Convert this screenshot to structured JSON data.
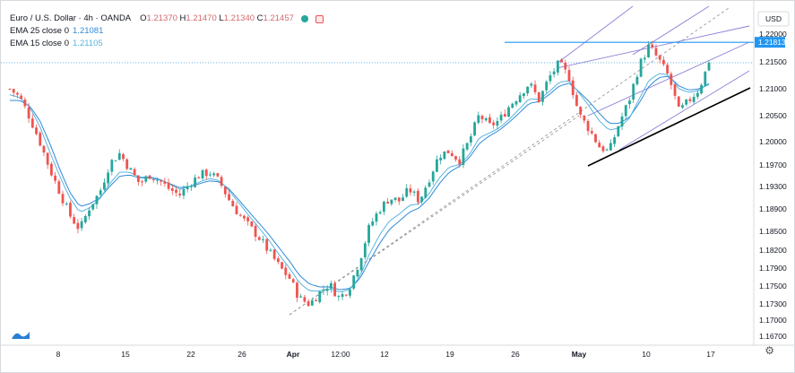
{
  "legend": {
    "symbol": "Euro / U.S. Dollar · 4h · OANDA",
    "ohlc": {
      "o": "1.21370",
      "h": "1.21470",
      "l": "1.21340",
      "c": "1.21457"
    },
    "ema25_label": "EMA 25 close 0",
    "ema25_value": "1.21081",
    "ema15_label": "EMA 15 close 0",
    "ema15_value": "1.21105"
  },
  "currency": "USD",
  "colors": {
    "up": "#26a69a",
    "down": "#ef5350",
    "ema25": "#2e8ad8",
    "ema15": "#58b4e0",
    "channel": "#8a80d8",
    "resistance": "#2196f3",
    "price_tag": "#2196f3",
    "support": "#000000"
  },
  "chart_data": {
    "type": "candlestick",
    "timeframe": "4h",
    "y_tick_labels": [
      "1.22000",
      "1.21500",
      "1.21000",
      "1.20500",
      "1.20000",
      "1.19700",
      "1.19300",
      "1.18900",
      "1.18500",
      "1.18200",
      "1.17900",
      "1.17500",
      "1.17300",
      "1.17000",
      "1.16700"
    ],
    "x_tick_labels": [
      "8",
      "15",
      "22",
      "26",
      "Apr",
      "12:00",
      "12",
      "19",
      "26",
      "May",
      "10",
      "17"
    ],
    "resistance_level": "1.21813",
    "last_price": 1.21457,
    "close_path": [
      1.21,
      1.2085,
      1.205,
      1.2008,
      1.196,
      1.192,
      1.188,
      1.1855,
      1.1895,
      1.192,
      1.197,
      1.1988,
      1.196,
      1.1935,
      1.195,
      1.194,
      1.1925,
      1.1915,
      1.1935,
      1.195,
      1.1955,
      1.1938,
      1.1905,
      1.188,
      1.186,
      1.184,
      1.1815,
      1.179,
      1.177,
      1.1735,
      1.1725,
      1.1745,
      1.176,
      1.1735,
      1.1755,
      1.18,
      1.186,
      1.189,
      1.191,
      1.1905,
      1.1925,
      1.1905,
      1.1945,
      1.1985,
      1.1992,
      1.1975,
      1.201,
      1.2055,
      1.2035,
      1.2045,
      1.207,
      1.209,
      1.211,
      1.208,
      1.212,
      1.2145,
      1.212,
      1.2055,
      1.203,
      1.2,
      1.199,
      1.204,
      1.208,
      1.214,
      1.2175,
      1.215,
      1.212,
      1.206,
      1.208,
      1.21,
      1.2146
    ],
    "ema25_path": [
      1.208,
      1.208,
      1.207,
      1.2045,
      1.2005,
      1.196,
      1.192,
      1.1895,
      1.19,
      1.191,
      1.193,
      1.1948,
      1.195,
      1.1945,
      1.1945,
      1.1942,
      1.1935,
      1.1928,
      1.193,
      1.1935,
      1.194,
      1.1938,
      1.1925,
      1.1905,
      1.1885,
      1.1865,
      1.1845,
      1.1822,
      1.18,
      1.1775,
      1.176,
      1.1755,
      1.1755,
      1.175,
      1.1752,
      1.1768,
      1.18,
      1.183,
      1.1855,
      1.187,
      1.1885,
      1.1893,
      1.191,
      1.1935,
      1.1955,
      1.1965,
      1.198,
      1.2005,
      1.2018,
      1.2028,
      1.2042,
      1.2058,
      1.2075,
      1.2078,
      1.209,
      1.2105,
      1.211,
      1.2095,
      1.2078,
      1.2058,
      1.204,
      1.204,
      1.205,
      1.2075,
      1.2105,
      1.212,
      1.2122,
      1.2105,
      1.2098,
      1.21,
      1.2108
    ],
    "ema15_path": [
      1.209,
      1.2085,
      1.2068,
      1.2035,
      1.199,
      1.1948,
      1.191,
      1.1885,
      1.1893,
      1.1908,
      1.1935,
      1.1955,
      1.1955,
      1.1946,
      1.1947,
      1.1943,
      1.1934,
      1.1925,
      1.193,
      1.1938,
      1.1944,
      1.194,
      1.1922,
      1.19,
      1.1878,
      1.1857,
      1.1835,
      1.181,
      1.1788,
      1.1762,
      1.1748,
      1.1748,
      1.1752,
      1.1746,
      1.175,
      1.1772,
      1.1812,
      1.1845,
      1.187,
      1.1882,
      1.1897,
      1.19,
      1.1918,
      1.1945,
      1.1964,
      1.1968,
      1.1985,
      1.2015,
      1.2023,
      1.2032,
      1.2047,
      1.2065,
      1.2083,
      1.2082,
      1.2095,
      1.2112,
      1.2114,
      1.2093,
      1.207,
      1.2045,
      1.2028,
      1.2032,
      1.2048,
      1.2082,
      1.2115,
      1.2127,
      1.2124,
      1.21,
      1.2094,
      1.2097,
      1.211
    ],
    "annotations": [
      "horizontal resistance line at 1.21813",
      "ascending parallel channel",
      "rising support trendline",
      "dotted horizontal line at last price"
    ]
  }
}
